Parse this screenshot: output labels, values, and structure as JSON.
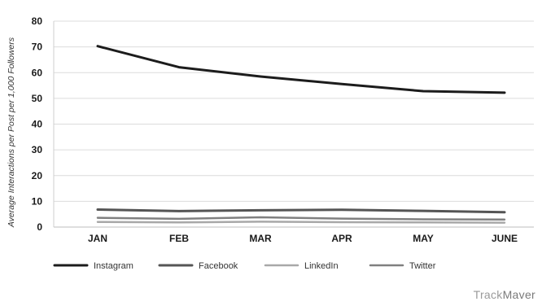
{
  "chart_data": {
    "type": "line",
    "categories": [
      "JAN",
      "FEB",
      "MAR",
      "APR",
      "MAY",
      "JUNE"
    ],
    "ylabel": "Average Interactions per Post per 1,000 Followers",
    "xlabel": "",
    "ylim": [
      0,
      80
    ],
    "yticks": [
      0,
      10,
      20,
      30,
      40,
      50,
      60,
      70,
      80
    ],
    "grid": true,
    "legend_position": "bottom",
    "series": [
      {
        "name": "Instagram",
        "values": [
          70.3,
          62.1,
          58.5,
          55.6,
          52.8,
          52.2
        ],
        "color": "#1c1c1c"
      },
      {
        "name": "Facebook",
        "values": [
          6.8,
          6.2,
          6.5,
          6.7,
          6.3,
          5.8
        ],
        "color": "#555555"
      },
      {
        "name": "LinkedIn",
        "values": [
          2.0,
          1.8,
          2.1,
          1.9,
          1.8,
          1.7
        ],
        "color": "#a8a8a8"
      },
      {
        "name": "Twitter",
        "values": [
          3.6,
          3.2,
          3.8,
          3.3,
          3.0,
          2.9
        ],
        "color": "#808080"
      }
    ]
  },
  "watermark": {
    "light": "Track",
    "bold": "Maver"
  }
}
